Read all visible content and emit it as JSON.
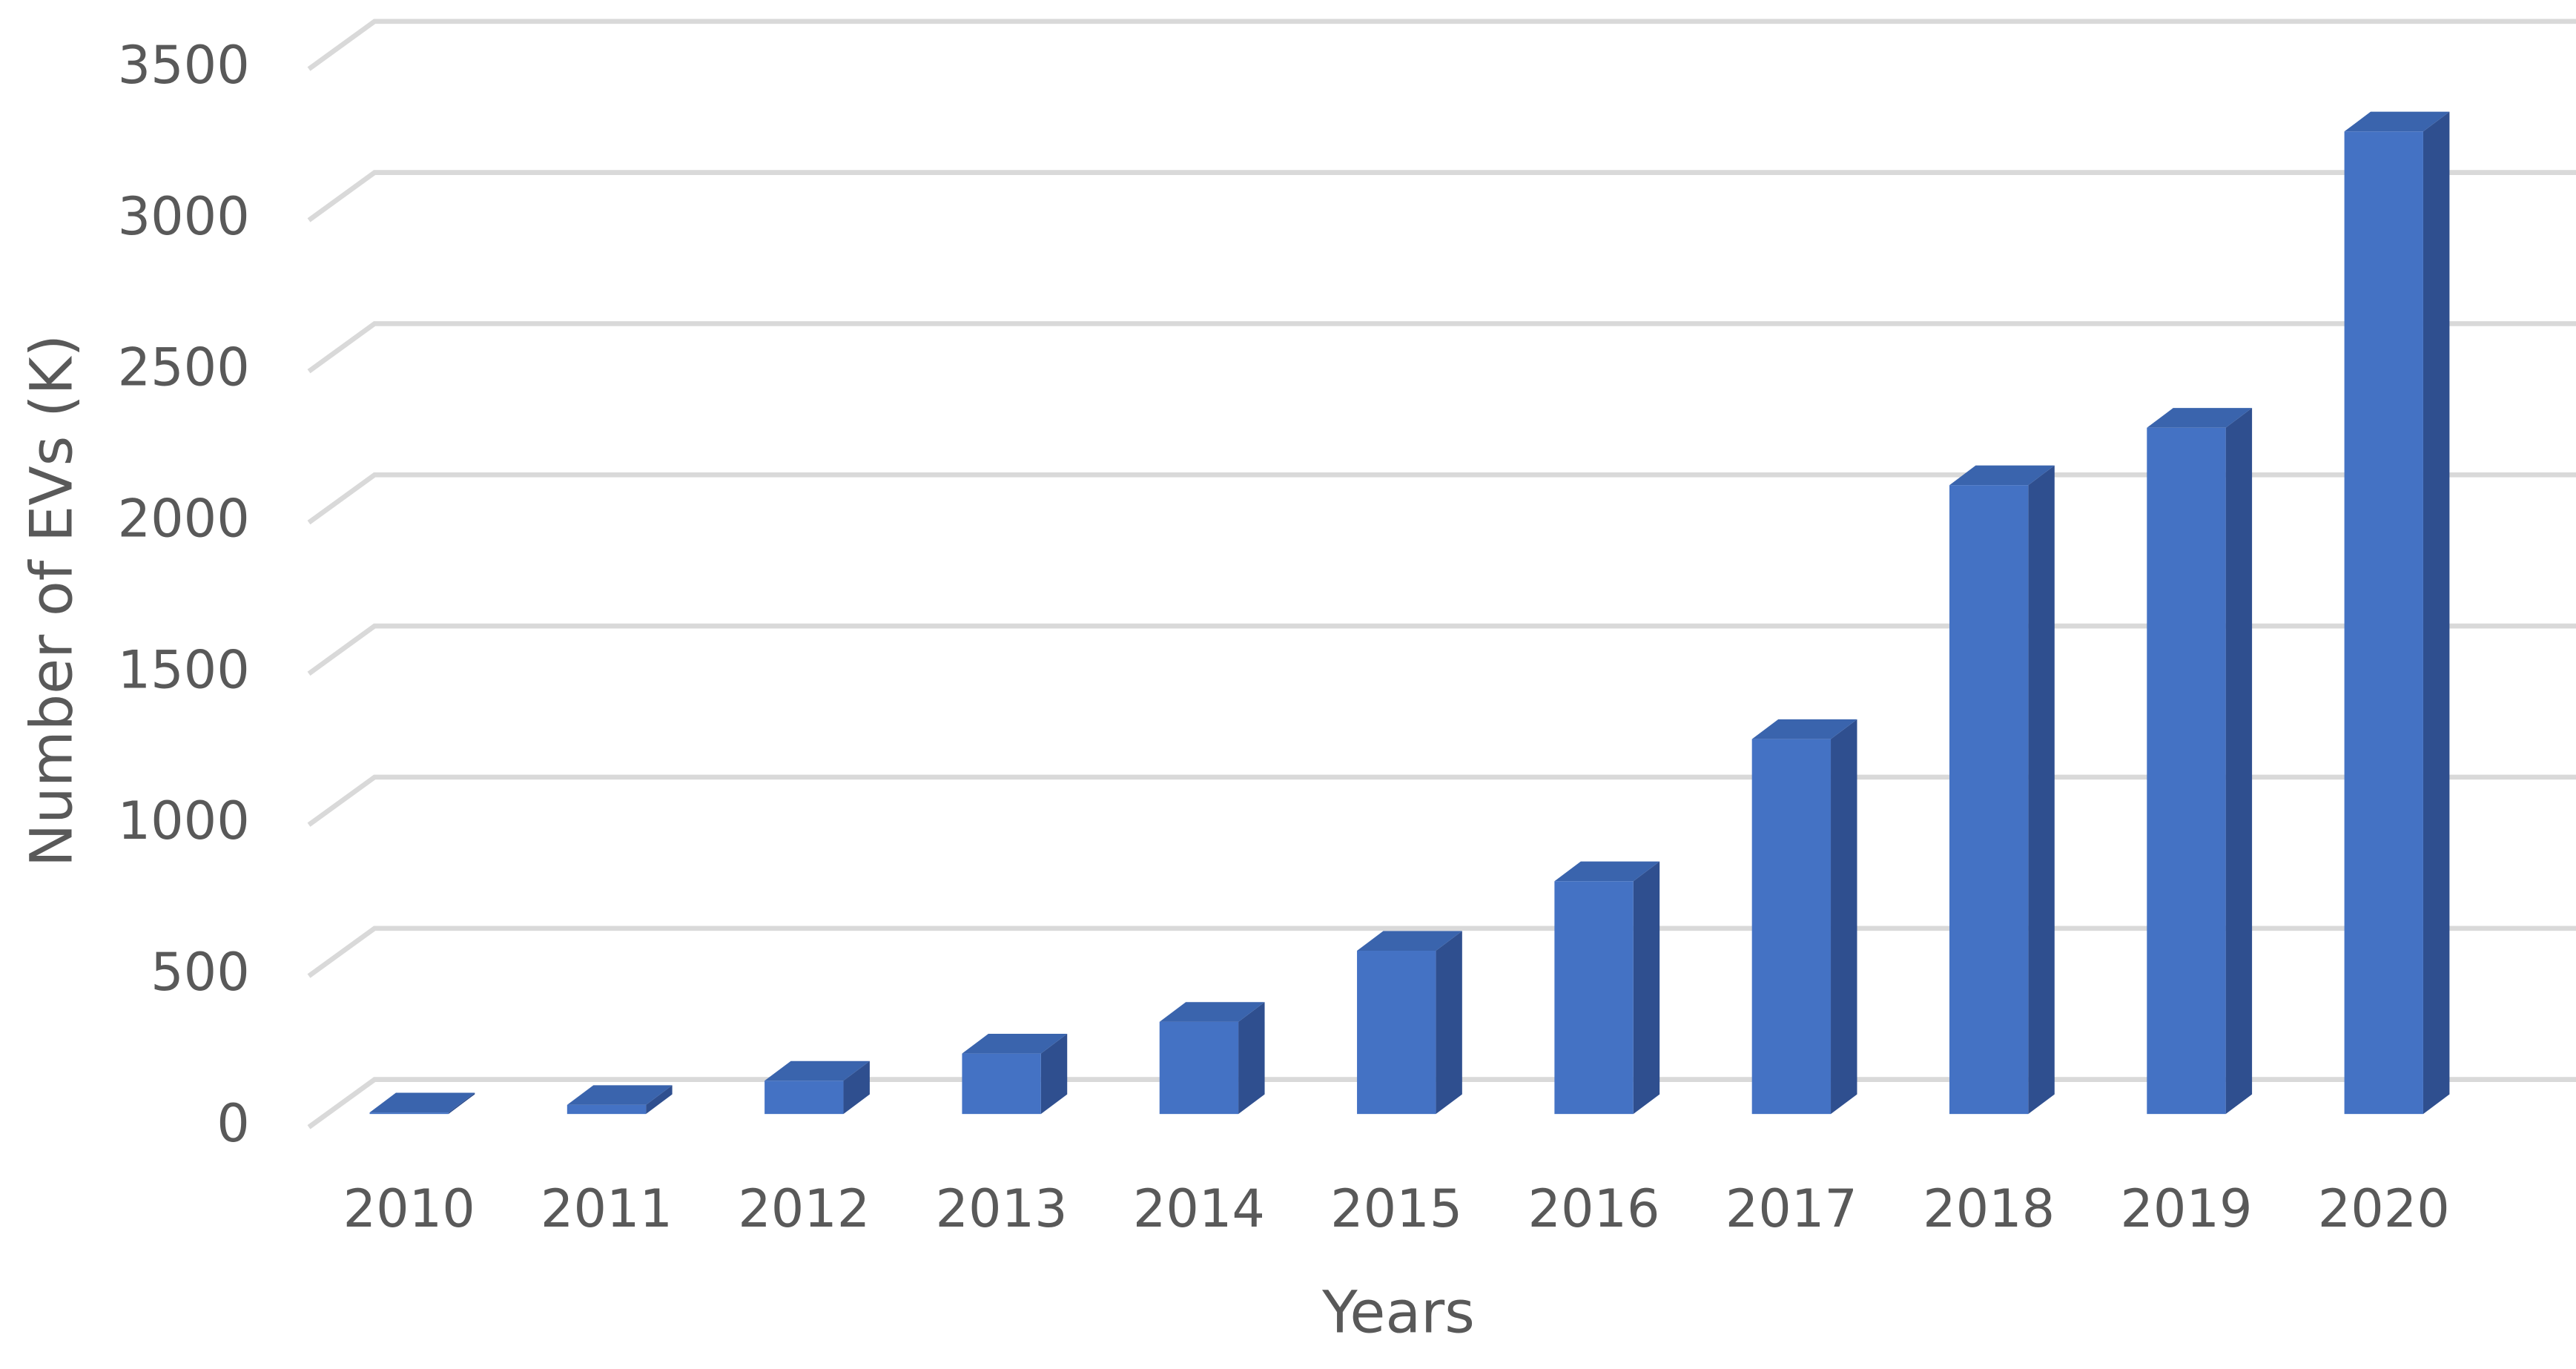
{
  "chart_data": {
    "type": "bar3d",
    "x_label": "Years",
    "y_label": "Number of EVs (K)",
    "categories": [
      "2010",
      "2011",
      "2012",
      "2013",
      "2014",
      "2015",
      "2016",
      "2017",
      "2018",
      "2019",
      "2020"
    ],
    "values": [
      5,
      30,
      110,
      200,
      305,
      540,
      770,
      1240,
      2080,
      2270,
      3250
    ],
    "color": "#4472c4",
    "ylim": [
      0,
      3500
    ],
    "yticks": [
      0,
      500,
      1000,
      1500,
      2000,
      2500,
      3000,
      3500
    ],
    "grid": true
  }
}
